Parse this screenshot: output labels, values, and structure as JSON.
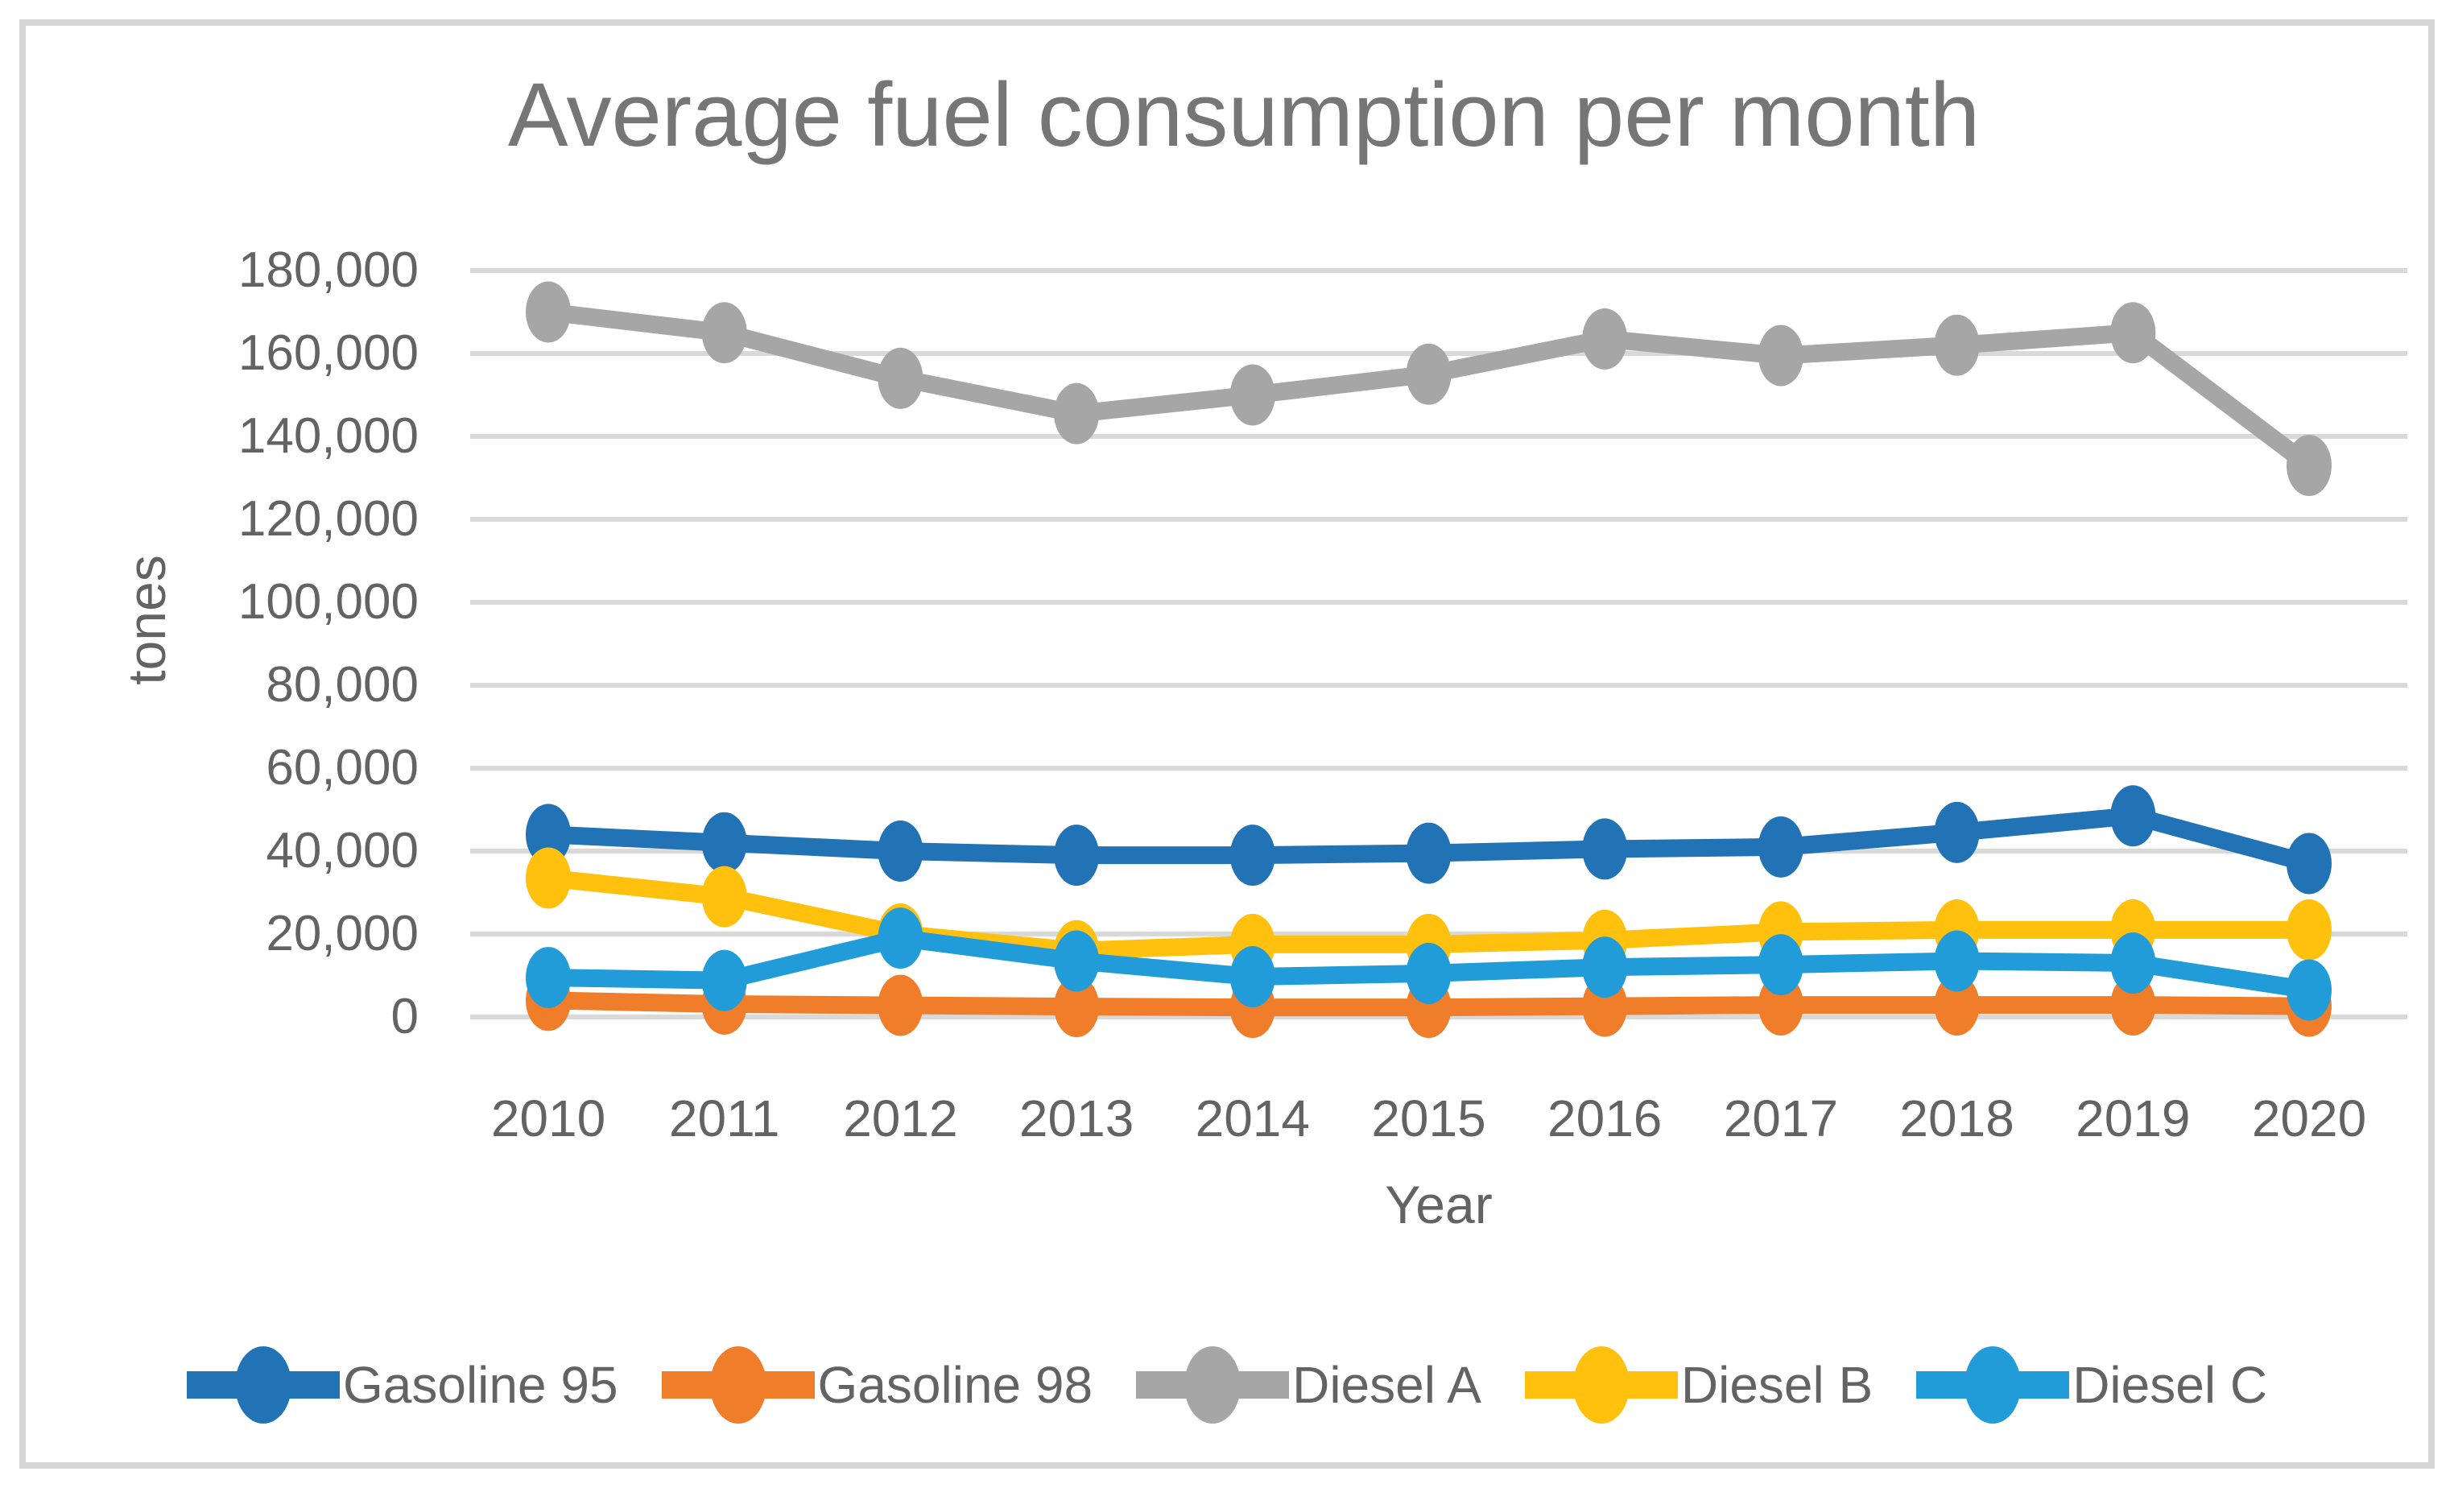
{
  "chart_data": {
    "type": "line",
    "title": "Average fuel consumption per month",
    "xlabel": "Year",
    "ylabel": "tones",
    "x": [
      2010,
      2011,
      2012,
      2013,
      2014,
      2015,
      2016,
      2017,
      2018,
      2019,
      2020
    ],
    "series": [
      {
        "name": "Gasoline 95",
        "color": "#2272B6",
        "values": [
          44000,
          42000,
          40000,
          39000,
          39000,
          39500,
          40500,
          41000,
          44500,
          48500,
          37000
        ]
      },
      {
        "name": "Gasoline 98",
        "color": "#F07D2A",
        "values": [
          4000,
          3100,
          2800,
          2500,
          2300,
          2300,
          2600,
          2900,
          2900,
          2900,
          2600
        ]
      },
      {
        "name": "Diesel A",
        "color": "#A6A6A6",
        "values": [
          170000,
          165000,
          154000,
          145500,
          150000,
          155000,
          163500,
          159500,
          162000,
          165000,
          133000
        ]
      },
      {
        "name": "Diesel B",
        "color": "#FFC10E",
        "values": [
          33500,
          29000,
          20000,
          16000,
          17500,
          17500,
          18500,
          20500,
          21000,
          21000,
          21000
        ]
      },
      {
        "name": "Diesel C",
        "color": "#219CD8",
        "values": [
          9500,
          8800,
          19000,
          13500,
          9700,
          10500,
          12000,
          12600,
          13500,
          13000,
          6500
        ]
      }
    ],
    "ylim": [
      0,
      180000
    ],
    "ytick_step": 20000,
    "ytick_labels": [
      "0",
      "20,000",
      "40,000",
      "60,000",
      "80,000",
      "100,000",
      "120,000",
      "140,000",
      "160,000",
      "180,000"
    ],
    "grid": true,
    "legend_position": "bottom"
  },
  "colors": {
    "grid": "#D9D9D9",
    "axis_text": "#636363",
    "title_text": "#767676",
    "frame_border": "#D6D6D6",
    "background": "#FFFFFF"
  }
}
